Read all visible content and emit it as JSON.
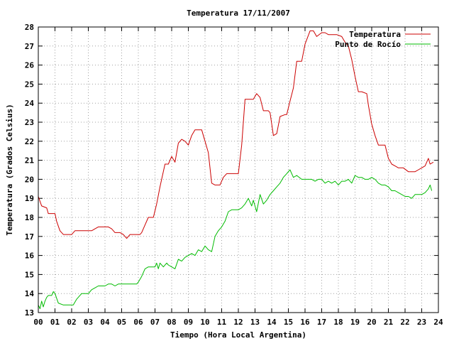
{
  "chart_data": {
    "type": "line",
    "title": "Temperatura 17/11/2007",
    "xlabel": "Tiempo (Hora Local Argentina)",
    "ylabel": "Temperatura (Grados Celsius)",
    "xlim": [
      0,
      24
    ],
    "ylim": [
      13,
      28
    ],
    "grid": true,
    "legend_position": "top-right",
    "x_ticks": [
      "00",
      "01",
      "02",
      "03",
      "04",
      "05",
      "06",
      "07",
      "08",
      "09",
      "10",
      "11",
      "12",
      "13",
      "14",
      "15",
      "16",
      "17",
      "18",
      "19",
      "20",
      "21",
      "22",
      "23",
      "24"
    ],
    "y_ticks": [
      "13",
      "14",
      "15",
      "16",
      "17",
      "18",
      "19",
      "20",
      "21",
      "22",
      "23",
      "24",
      "25",
      "26",
      "27",
      "28"
    ],
    "series": [
      {
        "name": "Temperatura",
        "color": "#cc0000",
        "x": [
          0,
          0.2,
          0.5,
          0.6,
          1.0,
          1.1,
          1.3,
          1.5,
          1.6,
          2.0,
          2.2,
          2.4,
          2.8,
          3.2,
          3.4,
          3.6,
          4.0,
          4.2,
          4.4,
          4.6,
          4.9,
          5.1,
          5.2,
          5.3,
          5.5,
          5.9,
          6.1,
          6.2,
          6.4,
          6.6,
          6.9,
          7.1,
          7.3,
          7.6,
          7.8,
          8.0,
          8.2,
          8.4,
          8.6,
          8.8,
          9.0,
          9.2,
          9.4,
          9.6,
          9.8,
          10.0,
          10.2,
          10.4,
          10.6,
          10.9,
          11.1,
          11.3,
          11.5,
          12.0,
          12.2,
          12.4,
          12.6,
          12.9,
          13.1,
          13.3,
          13.5,
          13.8,
          13.9,
          14.1,
          14.3,
          14.5,
          14.8,
          14.9,
          15.1,
          15.3,
          15.5,
          15.8,
          16.0,
          16.3,
          16.5,
          16.7,
          17.0,
          17.2,
          17.4,
          17.7,
          17.9,
          18.2,
          18.4,
          18.6,
          18.8,
          19.0,
          19.2,
          19.4,
          19.7,
          19.8,
          20.0,
          20.2,
          20.4,
          20.6,
          20.8,
          21.0,
          21.2,
          21.4,
          21.6,
          21.9,
          22.2,
          22.4,
          22.6,
          22.8,
          23.0,
          23.2,
          23.4,
          23.5,
          23.7
        ],
        "y": [
          19.1,
          18.6,
          18.5,
          18.2,
          18.2,
          17.8,
          17.3,
          17.1,
          17.1,
          17.1,
          17.3,
          17.3,
          17.3,
          17.3,
          17.4,
          17.5,
          17.5,
          17.5,
          17.4,
          17.2,
          17.2,
          17.1,
          17.0,
          16.9,
          17.1,
          17.1,
          17.1,
          17.2,
          17.6,
          18.0,
          18.0,
          18.7,
          19.6,
          20.8,
          20.8,
          21.2,
          20.9,
          21.9,
          22.1,
          22.0,
          21.8,
          22.3,
          22.6,
          22.6,
          22.6,
          22.0,
          21.4,
          19.8,
          19.7,
          19.7,
          20.1,
          20.3,
          20.3,
          20.3,
          21.8,
          24.2,
          24.2,
          24.2,
          24.5,
          24.3,
          23.6,
          23.6,
          23.5,
          22.3,
          22.4,
          23.3,
          23.4,
          23.4,
          24.1,
          24.8,
          26.2,
          26.2,
          27.1,
          27.8,
          27.8,
          27.5,
          27.7,
          27.7,
          27.6,
          27.6,
          27.6,
          27.5,
          27.2,
          27.0,
          26.3,
          25.4,
          24.6,
          24.6,
          24.5,
          23.9,
          22.9,
          22.3,
          21.8,
          21.8,
          21.8,
          21.1,
          20.8,
          20.7,
          20.6,
          20.6,
          20.4,
          20.4,
          20.4,
          20.5,
          20.6,
          20.7,
          21.1,
          20.8,
          20.9
        ]
      },
      {
        "name": "Punto de Rocío",
        "color": "#00bb00",
        "x": [
          0,
          0.1,
          0.2,
          0.3,
          0.4,
          0.5,
          0.6,
          0.8,
          0.9,
          1.0,
          1.2,
          1.5,
          1.8,
          2.1,
          2.3,
          2.6,
          2.8,
          3.0,
          3.2,
          3.4,
          3.6,
          3.8,
          4.0,
          4.2,
          4.4,
          4.6,
          4.8,
          5.0,
          5.2,
          5.4,
          5.6,
          5.8,
          5.9,
          6.0,
          6.2,
          6.4,
          6.6,
          6.8,
          7.0,
          7.1,
          7.2,
          7.3,
          7.5,
          7.7,
          7.8,
          8.0,
          8.2,
          8.4,
          8.6,
          8.8,
          9.0,
          9.2,
          9.4,
          9.6,
          9.8,
          10.0,
          10.2,
          10.4,
          10.6,
          10.8,
          11.0,
          11.2,
          11.4,
          11.6,
          11.8,
          12.0,
          12.2,
          12.4,
          12.6,
          12.8,
          12.9,
          13.1,
          13.3,
          13.5,
          13.7,
          13.9,
          14.1,
          14.3,
          14.5,
          14.7,
          14.9,
          15.1,
          15.3,
          15.5,
          15.8,
          16.0,
          16.2,
          16.4,
          16.6,
          16.8,
          17.0,
          17.2,
          17.4,
          17.6,
          17.8,
          18.0,
          18.2,
          18.4,
          18.6,
          18.8,
          19.0,
          19.2,
          19.4,
          19.6,
          19.8,
          20.0,
          20.2,
          20.4,
          20.6,
          20.8,
          21.0,
          21.2,
          21.4,
          21.6,
          21.8,
          22.0,
          22.2,
          22.4,
          22.6,
          22.8,
          23.0,
          23.2,
          23.4,
          23.5,
          23.6
        ],
        "y": [
          13.4,
          13.2,
          13.6,
          13.3,
          13.6,
          13.8,
          13.9,
          13.9,
          14.1,
          14.0,
          13.5,
          13.4,
          13.4,
          13.4,
          13.7,
          14.0,
          14.0,
          14.0,
          14.2,
          14.3,
          14.4,
          14.4,
          14.4,
          14.5,
          14.5,
          14.4,
          14.5,
          14.5,
          14.5,
          14.5,
          14.5,
          14.5,
          14.5,
          14.6,
          14.9,
          15.3,
          15.4,
          15.4,
          15.4,
          15.6,
          15.3,
          15.6,
          15.4,
          15.6,
          15.5,
          15.4,
          15.3,
          15.8,
          15.7,
          15.9,
          16.0,
          16.1,
          16.0,
          16.3,
          16.2,
          16.5,
          16.3,
          16.2,
          17.0,
          17.3,
          17.5,
          17.8,
          18.3,
          18.4,
          18.4,
          18.4,
          18.5,
          18.7,
          19.0,
          18.6,
          18.9,
          18.3,
          19.2,
          18.7,
          18.9,
          19.2,
          19.4,
          19.6,
          19.8,
          20.1,
          20.3,
          20.5,
          20.1,
          20.2,
          20.0,
          20.0,
          20.0,
          20.0,
          19.9,
          20.0,
          20.0,
          19.8,
          19.9,
          19.8,
          19.9,
          19.7,
          19.9,
          19.9,
          20.0,
          19.8,
          20.2,
          20.1,
          20.1,
          20.0,
          20.0,
          20.1,
          20.0,
          19.8,
          19.7,
          19.7,
          19.6,
          19.4,
          19.4,
          19.3,
          19.2,
          19.1,
          19.1,
          19.0,
          19.2,
          19.2,
          19.2,
          19.3,
          19.5,
          19.7,
          19.4
        ]
      }
    ]
  }
}
